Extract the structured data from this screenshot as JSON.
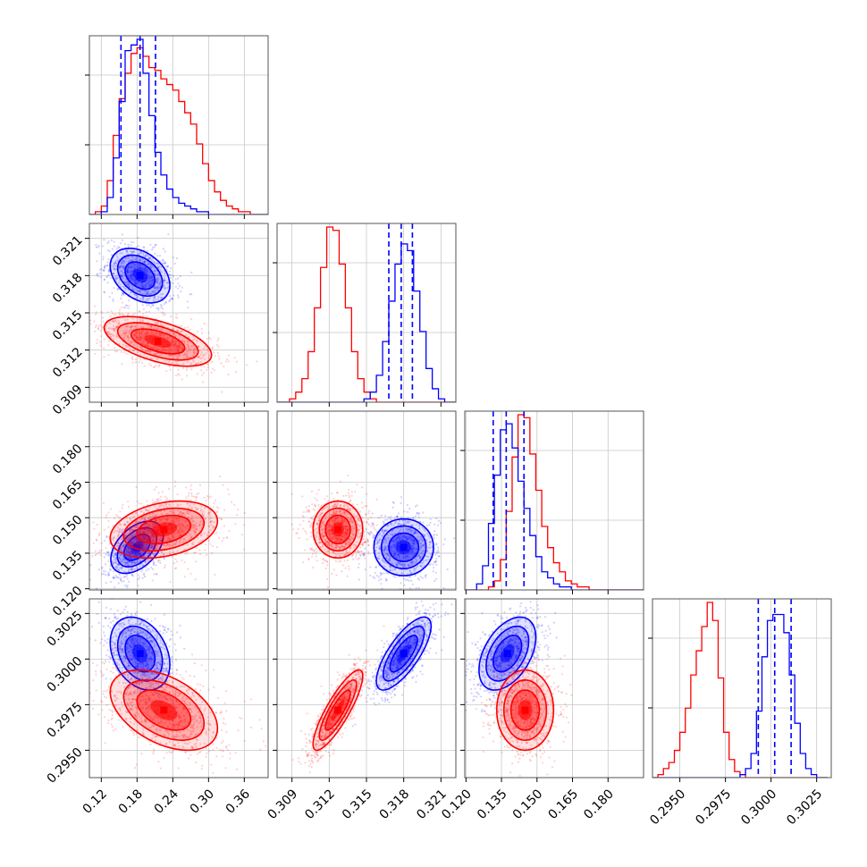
{
  "chart_data": {
    "type": "corner",
    "grid": true,
    "series": [
      {
        "name": "",
        "color": "#0000ff"
      },
      {
        "name": "",
        "color": "#ff0000"
      }
    ],
    "parameters": [
      {
        "index": 0,
        "ticks": [
          0.12,
          0.18,
          0.24,
          0.3,
          0.36
        ],
        "tick_labels": [
          "0.12",
          "0.18",
          "0.24",
          "0.30",
          "0.36"
        ],
        "range": [
          0.1,
          0.4
        ]
      },
      {
        "index": 1,
        "ticks": [
          0.309,
          0.312,
          0.315,
          0.318,
          0.321
        ],
        "tick_labels": [
          "0.309",
          "0.312",
          "0.315",
          "0.318",
          "0.321"
        ],
        "range": [
          0.3078,
          0.3222
        ]
      },
      {
        "index": 2,
        "ticks": [
          0.12,
          0.135,
          0.15,
          0.165,
          0.18
        ],
        "tick_labels": [
          "0.120",
          "0.135",
          "0.150",
          "0.165",
          "0.180"
        ],
        "range": [
          0.1195,
          0.195
        ]
      },
      {
        "index": 3,
        "ticks": [
          0.295,
          0.2975,
          0.3,
          0.3025
        ],
        "tick_labels": [
          "0.2950",
          "0.2975",
          "0.3000",
          "0.3025"
        ],
        "range": [
          0.2935,
          0.3033
        ]
      }
    ],
    "marginals": [
      {
        "param": 0,
        "blue": {
          "quantile_lines": [
            0.153,
            0.185,
            0.211
          ],
          "bins": [
            0.1,
            0.11,
            0.12,
            0.13,
            0.14,
            0.15,
            0.16,
            0.17,
            0.18,
            0.19,
            0.2,
            0.21,
            0.22,
            0.23,
            0.24,
            0.25,
            0.26,
            0.27,
            0.28,
            0.29,
            0.3,
            0.31,
            0.32,
            0.33,
            0.34,
            0.35,
            0.36,
            0.37,
            0.38,
            0.39,
            0.4
          ],
          "counts": [
            0,
            0,
            1,
            6,
            20,
            40,
            58,
            60,
            62,
            50,
            35,
            22,
            14,
            9,
            6,
            4,
            3,
            2,
            1,
            1,
            0,
            0,
            0,
            0,
            0,
            0,
            0,
            0,
            0,
            0
          ]
        },
        "red": {
          "bins": [
            0.1,
            0.11,
            0.12,
            0.13,
            0.14,
            0.15,
            0.16,
            0.17,
            0.18,
            0.19,
            0.2,
            0.21,
            0.22,
            0.23,
            0.24,
            0.25,
            0.26,
            0.27,
            0.28,
            0.29,
            0.3,
            0.31,
            0.32,
            0.33,
            0.34,
            0.35,
            0.36,
            0.37,
            0.38,
            0.39,
            0.4
          ],
          "counts": [
            0,
            1,
            3,
            12,
            28,
            41,
            50,
            57,
            59,
            56,
            52,
            51,
            48,
            46,
            44,
            40,
            36,
            32,
            25,
            18,
            12,
            8,
            5,
            3,
            2,
            1,
            1,
            0,
            0,
            0
          ]
        }
      },
      {
        "param": 1,
        "blue": {
          "quantile_lines": [
            0.3168,
            0.3178,
            0.3187
          ],
          "bins": [
            0.3078,
            0.3083,
            0.3088,
            0.3093,
            0.3098,
            0.3103,
            0.3108,
            0.3113,
            0.3118,
            0.3123,
            0.3128,
            0.3133,
            0.3138,
            0.3143,
            0.3148,
            0.3153,
            0.3158,
            0.3163,
            0.3168,
            0.3173,
            0.3178,
            0.3183,
            0.3188,
            0.3193,
            0.3198,
            0.3203,
            0.3208,
            0.3213,
            0.3218,
            0.3223
          ],
          "counts": [
            0,
            0,
            0,
            0,
            0,
            0,
            0,
            0,
            0,
            0,
            0,
            0,
            0,
            0,
            1,
            3,
            8,
            18,
            30,
            41,
            47,
            45,
            33,
            21,
            10,
            4,
            1,
            0,
            0
          ]
        },
        "red": {
          "bins": [
            0.3078,
            0.3083,
            0.3088,
            0.3093,
            0.3098,
            0.3103,
            0.3108,
            0.3113,
            0.3118,
            0.3123,
            0.3128,
            0.3133,
            0.3138,
            0.3143,
            0.3148,
            0.3153,
            0.3158,
            0.3163,
            0.3168,
            0.3173,
            0.3178,
            0.3183,
            0.3188,
            0.3193,
            0.3198,
            0.3203,
            0.3208,
            0.3213,
            0.3218,
            0.3223
          ],
          "counts": [
            0,
            0,
            1,
            3,
            7,
            15,
            28,
            40,
            52,
            51,
            41,
            28,
            15,
            7,
            3,
            1,
            0,
            0,
            0,
            0,
            0,
            0,
            0,
            0,
            0,
            0,
            0,
            0,
            0
          ]
        }
      },
      {
        "param": 2,
        "blue": {
          "quantile_lines": [
            0.1315,
            0.137,
            0.1445
          ],
          "bins": [
            0.1195,
            0.122,
            0.1245,
            0.127,
            0.1295,
            0.132,
            0.1345,
            0.137,
            0.1395,
            0.142,
            0.1445,
            0.147,
            0.1495,
            0.152,
            0.1545,
            0.157,
            0.1595,
            0.162,
            0.1645,
            0.167,
            0.1695,
            0.172,
            0.1745,
            0.177,
            0.1795,
            0.182,
            0.1845,
            0.187,
            0.1895,
            0.192,
            0.195
          ],
          "counts": [
            0,
            0,
            2,
            8,
            22,
            38,
            53,
            55,
            47,
            36,
            27,
            18,
            11,
            6,
            4,
            2,
            1,
            1,
            0,
            0,
            0,
            0,
            0,
            0,
            0,
            0,
            0,
            0,
            0,
            0
          ]
        },
        "red": {
          "bins": [
            0.1195,
            0.122,
            0.1245,
            0.127,
            0.1295,
            0.132,
            0.1345,
            0.137,
            0.1395,
            0.142,
            0.1445,
            0.147,
            0.1495,
            0.152,
            0.1545,
            0.157,
            0.1595,
            0.162,
            0.1645,
            0.167,
            0.1695,
            0.172,
            0.1745,
            0.177,
            0.1795,
            0.182,
            0.1845,
            0.187,
            0.1895,
            0.192,
            0.195
          ],
          "counts": [
            0,
            0,
            0,
            0,
            1,
            3,
            10,
            26,
            44,
            58,
            57,
            45,
            33,
            21,
            14,
            9,
            6,
            3,
            2,
            1,
            1,
            0,
            0,
            0,
            0,
            0,
            0,
            0,
            0,
            0
          ]
        }
      },
      {
        "param": 3,
        "blue": {
          "quantile_lines": [
            0.2993,
            0.3002,
            0.3011
          ],
          "bins": [
            0.2935,
            0.2938,
            0.2941,
            0.2944,
            0.2947,
            0.295,
            0.2953,
            0.2956,
            0.2959,
            0.2962,
            0.2965,
            0.2968,
            0.2971,
            0.2974,
            0.2977,
            0.298,
            0.2983,
            0.2986,
            0.2989,
            0.2992,
            0.2995,
            0.2998,
            0.3001,
            0.3004,
            0.3007,
            0.301,
            0.3013,
            0.3016,
            0.3019,
            0.3022,
            0.3025,
            0.3028,
            0.3031
          ],
          "counts": [
            0,
            0,
            0,
            0,
            0,
            0,
            0,
            0,
            0,
            0,
            0,
            0,
            0,
            0,
            0,
            0,
            1,
            3,
            8,
            22,
            40,
            52,
            54,
            54,
            48,
            34,
            18,
            8,
            3,
            1,
            0,
            0
          ]
        },
        "red": {
          "bins": [
            0.2935,
            0.2938,
            0.2941,
            0.2944,
            0.2947,
            0.295,
            0.2953,
            0.2956,
            0.2959,
            0.2962,
            0.2965,
            0.2968,
            0.2971,
            0.2974,
            0.2977,
            0.298,
            0.2983,
            0.2986,
            0.2989,
            0.2992,
            0.2995,
            0.2998,
            0.3001,
            0.3004,
            0.3007,
            0.301,
            0.3013,
            0.3016,
            0.3019,
            0.3022,
            0.3025,
            0.3028,
            0.3031
          ],
          "counts": [
            0,
            1,
            3,
            5,
            9,
            15,
            23,
            34,
            42,
            50,
            58,
            52,
            33,
            15,
            6,
            2,
            1,
            0,
            0,
            0,
            0,
            0,
            0,
            0,
            0,
            0,
            0,
            0,
            0,
            0,
            0,
            0
          ]
        }
      }
    ],
    "joint_2d": [
      {
        "row": 1,
        "col": 0,
        "blue": {
          "mean": [
            0.185,
            0.318
          ],
          "sd": [
            0.025,
            0.0011
          ],
          "rho": -0.35
        },
        "red": {
          "mean": [
            0.215,
            0.3127
          ],
          "sd": [
            0.045,
            0.001
          ],
          "rho": -0.55
        }
      },
      {
        "row": 2,
        "col": 0,
        "blue": {
          "mean": [
            0.18,
            0.1375
          ],
          "sd": [
            0.022,
            0.0055
          ],
          "rho": 0.45
        },
        "red": {
          "mean": [
            0.225,
            0.145
          ],
          "sd": [
            0.045,
            0.006
          ],
          "rho": 0.3
        }
      },
      {
        "row": 2,
        "col": 1,
        "blue": {
          "mean": [
            0.318,
            0.1375
          ],
          "sd": [
            0.0012,
            0.006
          ],
          "rho": 0.0
        },
        "red": {
          "mean": [
            0.3127,
            0.145
          ],
          "sd": [
            0.001,
            0.006
          ],
          "rho": 0.0
        }
      },
      {
        "row": 3,
        "col": 0,
        "blue": {
          "mean": [
            0.185,
            0.3003
          ],
          "sd": [
            0.025,
            0.001
          ],
          "rho": -0.3
        },
        "red": {
          "mean": [
            0.225,
            0.2972
          ],
          "sd": [
            0.045,
            0.0011
          ],
          "rho": -0.45
        }
      },
      {
        "row": 3,
        "col": 1,
        "blue": {
          "mean": [
            0.318,
            0.3003
          ],
          "sd": [
            0.0011,
            0.001
          ],
          "rho": 0.75
        },
        "red": {
          "mean": [
            0.3127,
            0.2972
          ],
          "sd": [
            0.001,
            0.0011
          ],
          "rho": 0.85
        }
      },
      {
        "row": 3,
        "col": 2,
        "blue": {
          "mean": [
            0.1375,
            0.3003
          ],
          "sd": [
            0.006,
            0.001
          ],
          "rho": 0.45
        },
        "red": {
          "mean": [
            0.145,
            0.2972
          ],
          "sd": [
            0.006,
            0.0011
          ],
          "rho": 0.0
        }
      }
    ]
  }
}
